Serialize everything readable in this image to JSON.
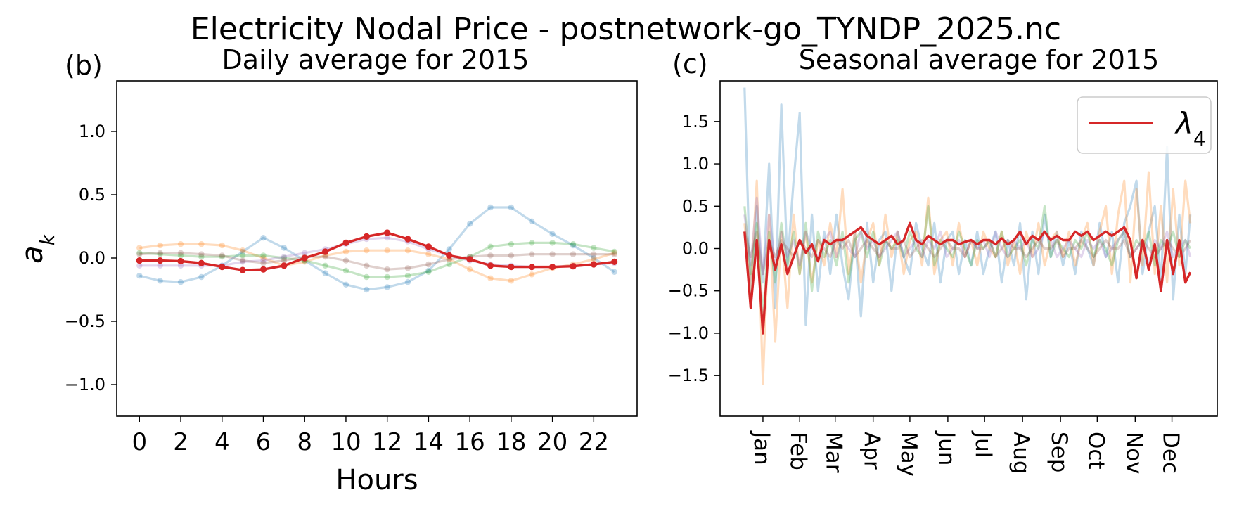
{
  "suptitle": "Electricity Nodal Price - postnetwork-go_TYNDP_2025.nc",
  "colors": {
    "blue": "#1f77b4",
    "orange": "#ff7f0e",
    "green": "#2ca02c",
    "red": "#d62728",
    "purple": "#9467bd",
    "brown": "#8c564b"
  },
  "chart_data": [
    {
      "type": "line",
      "panel_label": "(b)",
      "title": "Daily average for 2015",
      "xlabel": "Hours",
      "ylabel": "a_k",
      "ylabel_display": "a",
      "ylabel_sub": "k",
      "xlim": [
        -1.1,
        24.1
      ],
      "ylim": [
        -1.25,
        1.4
      ],
      "x": [
        0,
        1,
        2,
        3,
        4,
        5,
        6,
        7,
        8,
        9,
        10,
        11,
        12,
        13,
        14,
        15,
        16,
        17,
        18,
        19,
        20,
        21,
        22,
        23
      ],
      "x_ticks": [
        0,
        2,
        4,
        6,
        8,
        10,
        12,
        14,
        16,
        18,
        20,
        22
      ],
      "x_tick_labels": [
        "0",
        "2",
        "4",
        "6",
        "8",
        "10",
        "12",
        "14",
        "16",
        "18",
        "20",
        "22"
      ],
      "y_ticks": [
        -1.0,
        -0.5,
        0.0,
        0.5,
        1.0
      ],
      "y_tick_labels": [
        "−1.0",
        "−0.5",
        "0.0",
        "0.5",
        "1.0"
      ],
      "grid": false,
      "series": [
        {
          "color_key": "blue",
          "highlight": false,
          "values": [
            -0.14,
            -0.18,
            -0.19,
            -0.15,
            -0.06,
            0.05,
            0.16,
            0.08,
            -0.02,
            -0.12,
            -0.21,
            -0.25,
            -0.23,
            -0.19,
            -0.1,
            0.07,
            0.27,
            0.4,
            0.4,
            0.29,
            0.19,
            0.1,
            0.0,
            -0.11
          ]
        },
        {
          "color_key": "orange",
          "highlight": false,
          "values": [
            0.08,
            0.1,
            0.11,
            0.11,
            0.1,
            0.06,
            0.0,
            -0.06,
            -0.03,
            0.02,
            0.05,
            0.06,
            0.06,
            0.06,
            0.03,
            -0.01,
            -0.09,
            -0.16,
            -0.18,
            -0.13,
            -0.08,
            -0.05,
            -0.01,
            0.04
          ]
        },
        {
          "color_key": "green",
          "highlight": false,
          "values": [
            0.04,
            0.03,
            0.02,
            0.01,
            0.01,
            0.02,
            0.02,
            0.0,
            -0.02,
            -0.06,
            -0.1,
            -0.15,
            -0.15,
            -0.14,
            -0.11,
            -0.05,
            0.01,
            0.09,
            0.11,
            0.12,
            0.12,
            0.11,
            0.08,
            0.05
          ]
        },
        {
          "color_key": "purple",
          "highlight": false,
          "values": [
            -0.06,
            -0.06,
            -0.06,
            -0.06,
            -0.06,
            -0.03,
            -0.02,
            0.01,
            0.04,
            0.07,
            0.11,
            0.15,
            0.16,
            0.13,
            0.07,
            0.02,
            -0.02,
            -0.05,
            -0.06,
            -0.07,
            -0.07,
            -0.06,
            -0.05,
            -0.04
          ]
        },
        {
          "color_key": "brown",
          "highlight": false,
          "values": [
            0.03,
            0.04,
            0.04,
            0.03,
            0.02,
            -0.02,
            -0.04,
            -0.02,
            0.01,
            0.01,
            -0.02,
            -0.06,
            -0.09,
            -0.08,
            -0.05,
            -0.01,
            0.01,
            0.02,
            0.02,
            0.03,
            0.03,
            0.03,
            0.03,
            0.03
          ]
        },
        {
          "color_key": "red",
          "highlight": true,
          "name": "λ4",
          "values": [
            -0.02,
            -0.02,
            -0.025,
            -0.04,
            -0.07,
            -0.095,
            -0.09,
            -0.06,
            0.0,
            0.05,
            0.12,
            0.17,
            0.2,
            0.15,
            0.09,
            0.02,
            -0.01,
            -0.06,
            -0.07,
            -0.07,
            -0.07,
            -0.065,
            -0.05,
            -0.03
          ]
        }
      ]
    },
    {
      "type": "line",
      "panel_label": "(c)",
      "title": "Seasonal average for 2015",
      "xlabel": "",
      "ylabel": "",
      "xlim": [
        -20,
        386
      ],
      "ylim": [
        -1.98,
        1.98
      ],
      "x_ticks": [
        15,
        45,
        74,
        105,
        135,
        166,
        196,
        227,
        258,
        288,
        319,
        349
      ],
      "x_tick_labels": [
        "Jan",
        "Feb",
        "Mar",
        "Apr",
        "May",
        "Jun",
        "Jul",
        "Aug",
        "Sep",
        "Oct",
        "Nov",
        "Dec"
      ],
      "y_ticks": [
        -1.5,
        -1.0,
        -0.5,
        0.0,
        0.5,
        1.0,
        1.5
      ],
      "y_tick_labels": [
        "−1.5",
        "−1.0",
        "−0.5",
        "0.0",
        "0.5",
        "1.0",
        "1.5"
      ],
      "grid": false,
      "legend": {
        "position": "top-right",
        "entries": [
          {
            "label": "λ4",
            "label_main": "λ",
            "label_sub": "4",
            "color_key": "red"
          }
        ]
      },
      "x": [
        0,
        5,
        10,
        15,
        20,
        25,
        30,
        35,
        40,
        45,
        50,
        55,
        60,
        65,
        70,
        75,
        80,
        85,
        90,
        95,
        100,
        105,
        110,
        115,
        120,
        125,
        130,
        135,
        140,
        145,
        150,
        155,
        160,
        165,
        170,
        175,
        180,
        185,
        190,
        195,
        200,
        205,
        210,
        215,
        220,
        225,
        230,
        235,
        240,
        245,
        250,
        255,
        260,
        265,
        270,
        275,
        280,
        285,
        290,
        295,
        300,
        305,
        310,
        315,
        320,
        325,
        330,
        335,
        340,
        345,
        350,
        355,
        360,
        364
      ],
      "series": [
        {
          "color_key": "blue",
          "highlight": false,
          "values": [
            1.9,
            -0.6,
            0.5,
            -0.4,
            1.0,
            -0.7,
            1.7,
            -0.2,
            0.8,
            1.6,
            -0.9,
            0.4,
            -0.5,
            0.2,
            -0.3,
            0.4,
            -0.2,
            -0.6,
            0.2,
            -0.8,
            0.3,
            -0.4,
            0.1,
            0.2,
            -0.5,
            0.2,
            -0.1,
            -0.3,
            0.3,
            0.0,
            -0.2,
            0.3,
            -0.4,
            0.1,
            0.2,
            -0.3,
            0.1,
            -0.2,
            0.2,
            -0.3,
            0.0,
            0.2,
            -0.4,
            0.1,
            -0.2,
            0.3,
            -0.6,
            0.2,
            -0.3,
            0.4,
            -0.1,
            0.2,
            -0.2,
            0.1,
            -0.3,
            0.2,
            0.0,
            -0.2,
            0.3,
            -0.1,
            0.2,
            -0.4,
            0.3,
            0.5,
            0.8,
            -0.3,
            0.2,
            0.5,
            -0.4,
            1.2,
            -0.6,
            0.4,
            -0.3,
            0.4
          ]
        },
        {
          "color_key": "orange",
          "highlight": false,
          "values": [
            0.3,
            -0.5,
            0.8,
            -1.6,
            0.4,
            -1.1,
            0.2,
            -0.7,
            0.4,
            -0.3,
            0.2,
            -0.4,
            0.1,
            -0.2,
            0.3,
            -0.1,
            0.7,
            -0.3,
            0.2,
            -0.4,
            0.1,
            0.3,
            -0.2,
            0.4,
            -0.1,
            0.2,
            -0.3,
            0.1,
            0.2,
            -0.2,
            0.6,
            -0.3,
            0.1,
            0.2,
            -0.2,
            0.3,
            -0.1,
            0.1,
            -0.2,
            0.2,
            0.0,
            -0.1,
            0.2,
            -0.2,
            0.1,
            -0.3,
            0.2,
            -0.1,
            0.3,
            -0.2,
            0.1,
            0.2,
            -0.1,
            0.2,
            -0.2,
            0.1,
            0.3,
            -0.2,
            0.2,
            0.5,
            -0.3,
            0.4,
            0.8,
            -0.4,
            0.7,
            -0.2,
            0.9,
            -0.3,
            0.5,
            -0.4,
            0.7,
            -0.2,
            0.8,
            0.3
          ]
        },
        {
          "color_key": "green",
          "highlight": false,
          "values": [
            0.5,
            -0.3,
            0.3,
            -0.8,
            0.2,
            -0.4,
            0.3,
            -0.2,
            0.2,
            -0.3,
            0.3,
            -0.5,
            0.2,
            -0.1,
            0.1,
            -0.2,
            0.2,
            -0.4,
            0.1,
            0.2,
            -0.1,
            0.2,
            -0.2,
            0.1,
            0.0,
            0.1,
            -0.1,
            0.2,
            0.0,
            -0.1,
            0.5,
            -0.2,
            0.1,
            0.0,
            -0.1,
            0.2,
            0.0,
            -0.2,
            0.1,
            0.0,
            0.1,
            -0.1,
            0.2,
            -0.1,
            0.0,
            0.1,
            -0.2,
            0.1,
            0.0,
            0.5,
            -0.1,
            0.1,
            0.0,
            -0.1,
            0.1,
            0.0,
            0.2,
            -0.1,
            0.1,
            0.0,
            -0.2,
            0.1,
            0.2,
            -0.1,
            0.1,
            0.0,
            0.2,
            -0.2,
            0.1,
            0.0,
            0.2,
            -0.1,
            0.1,
            0.0
          ]
        },
        {
          "color_key": "purple",
          "highlight": false,
          "values": [
            0.4,
            -0.2,
            0.6,
            -0.3,
            0.4,
            -0.2,
            0.2,
            -0.1,
            0.1,
            -0.2,
            0.2,
            0.0,
            -0.1,
            0.1,
            0.2,
            -0.1,
            0.1,
            0.0,
            -0.1,
            0.2,
            0.0,
            0.1,
            -0.1,
            0.0,
            0.1,
            0.2,
            -0.1,
            0.0,
            0.1,
            -0.1,
            0.1,
            0.0,
            0.2,
            -0.1,
            0.0,
            0.1,
            -0.1,
            0.1,
            0.0,
            0.1,
            -0.1,
            0.2,
            0.0,
            -0.1,
            0.1,
            0.0,
            0.1,
            -0.1,
            0.0,
            0.2,
            0.1,
            -0.1,
            0.0,
            0.1,
            0.0,
            -0.1,
            0.1,
            0.0,
            0.1,
            -0.1,
            0.0,
            0.1,
            0.2,
            -0.1,
            0.0,
            0.1,
            -0.2,
            0.1,
            0.0,
            0.2,
            -0.1,
            0.0,
            0.1,
            -0.1
          ]
        },
        {
          "color_key": "brown",
          "highlight": false,
          "values": [
            0.2,
            -0.1,
            0.2,
            -0.3,
            0.1,
            -0.1,
            0.1,
            0.0,
            -0.1,
            0.1,
            0.0,
            -0.1,
            0.1,
            0.0,
            -0.1,
            0.1,
            0.0,
            0.1,
            -0.1,
            0.0,
            0.1,
            0.0,
            -0.1,
            0.1,
            0.0,
            0.0,
            0.1,
            -0.1,
            0.0,
            0.1,
            0.0,
            -0.1,
            0.0,
            0.1,
            0.0,
            0.0,
            -0.1,
            0.1,
            0.0,
            0.0,
            0.1,
            -0.1,
            0.0,
            0.1,
            0.0,
            0.0,
            -0.1,
            0.0,
            0.1,
            0.0,
            0.0,
            0.1,
            -0.1,
            0.0,
            0.0,
            0.1,
            0.0,
            -0.1,
            0.0,
            0.1,
            0.0,
            0.0,
            0.1,
            -0.1,
            0.0,
            0.1,
            0.0,
            -0.1,
            0.0,
            0.1,
            0.0,
            -0.1,
            0.0,
            0.1
          ]
        },
        {
          "color_key": "red",
          "highlight": true,
          "name": "λ4",
          "values": [
            0.2,
            -0.7,
            0.1,
            -1.0,
            0.1,
            -0.25,
            0.05,
            -0.3,
            -0.1,
            0.1,
            -0.05,
            0.05,
            -0.15,
            0.1,
            0.05,
            0.1,
            0.1,
            0.15,
            0.2,
            0.25,
            0.15,
            0.1,
            0.05,
            0.1,
            0.15,
            0.05,
            0.1,
            0.3,
            0.1,
            0.05,
            0.15,
            0.1,
            0.05,
            0.1,
            0.1,
            0.05,
            0.08,
            0.1,
            0.05,
            0.1,
            0.1,
            0.05,
            0.12,
            0.05,
            0.1,
            0.2,
            0.05,
            0.15,
            0.1,
            0.2,
            0.1,
            0.15,
            0.1,
            0.1,
            0.2,
            0.15,
            0.2,
            0.1,
            0.15,
            0.2,
            0.15,
            0.2,
            0.25,
            0.1,
            -0.35,
            0.1,
            -0.25,
            0.05,
            -0.5,
            0.1,
            -0.3,
            0.1,
            -0.4,
            -0.28
          ]
        }
      ]
    }
  ]
}
